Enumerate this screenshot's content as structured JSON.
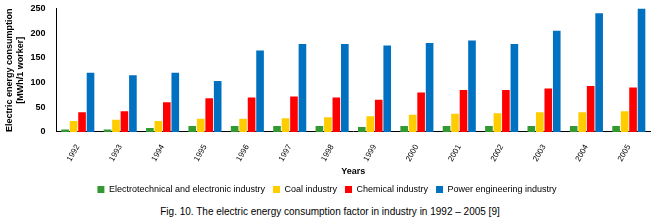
{
  "chart_data": {
    "type": "bar",
    "title": "Fig. 10. The electric energy consumption factor in industry in 1992 – 2005 [9]",
    "x_label": "Years",
    "y_label": [
      "Electric energy consumption",
      "[MWh/1 worker]"
    ],
    "categories": [
      "1992",
      "1993",
      "1994",
      "1995",
      "1996",
      "1997",
      "1998",
      "1999",
      "2000",
      "2001",
      "2002",
      "2003",
      "2004",
      "2005"
    ],
    "series": [
      {
        "name": "Electrotechnical and electronic industry",
        "color": "#339933",
        "values": [
          5,
          5,
          8,
          12,
          12,
          12,
          12,
          10,
          12,
          12,
          12,
          12,
          12,
          12
        ]
      },
      {
        "name": "Coal industry",
        "color": "#ffcc00",
        "values": [
          22,
          25,
          22,
          27,
          27,
          28,
          30,
          32,
          35,
          37,
          38,
          40,
          40,
          42
        ]
      },
      {
        "name": "Chemical industry",
        "color": "#ff0000",
        "values": [
          40,
          42,
          60,
          68,
          70,
          72,
          70,
          65,
          80,
          85,
          85,
          88,
          93,
          90
        ]
      },
      {
        "name": "Power engineering industry",
        "color": "#0070c0",
        "values": [
          120,
          115,
          120,
          103,
          165,
          178,
          178,
          175,
          180,
          185,
          178,
          205,
          240,
          250
        ]
      }
    ],
    "ylim": [
      0,
      250
    ],
    "yticks": [
      0,
      50,
      100,
      150,
      200,
      250
    ],
    "grid": false,
    "legend": "bottom"
  }
}
